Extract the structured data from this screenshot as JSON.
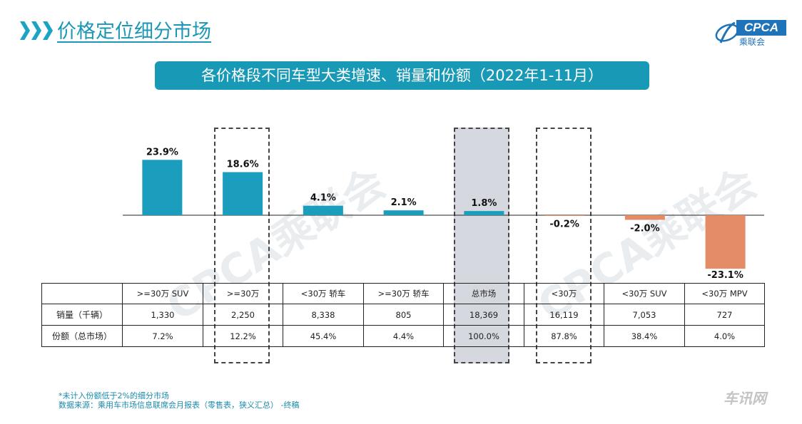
{
  "header": {
    "title": "价格定位细分市场",
    "logo_text": "CPCA",
    "logo_sub": "乘联会"
  },
  "banner": {
    "text": "各价格段不同车型大类增速、销量和份额（2022年1-11月）"
  },
  "watermark": {
    "text": "CPCA乘联会",
    "corner_text": "车讯网"
  },
  "colors": {
    "accent": "#1aa3c2",
    "positive": "#1b9dbd",
    "negative": "#e48b68",
    "highlight_fill": "#d5d8df"
  },
  "chart_data": {
    "type": "bar",
    "categories": [
      ">=30万 SUV",
      ">=30万",
      "<30万 轿车",
      ">=30万 轿车",
      "总市场",
      "<30万",
      "<30万 SUV",
      "<30万 MPV"
    ],
    "values": [
      23.9,
      18.6,
      4.1,
      2.1,
      1.8,
      -0.2,
      -2.0,
      -23.1
    ],
    "value_labels": [
      "23.9%",
      "18.6%",
      "4.1%",
      "2.1%",
      "1.8%",
      "-0.2%",
      "-2.0%",
      "-23.1%"
    ],
    "unit": "%",
    "highlighted_categories": [
      ">=30万",
      "总市场",
      "<30万"
    ],
    "table": {
      "rows": [
        {
          "label": "销量（千辆）",
          "values": [
            "1,330",
            "2,250",
            "8,338",
            "805",
            "18,369",
            "16,119",
            "7,053",
            "727"
          ]
        },
        {
          "label": "份额（总市场）",
          "values": [
            "7.2%",
            "12.2%",
            "45.4%",
            "4.4%",
            "100.0%",
            "87.8%",
            "38.4%",
            "4.0%"
          ]
        }
      ]
    }
  },
  "footnote": {
    "line1": "*未计入份额低于2%的细分市场",
    "line2": "数据来源：乘用车市场信息联席会月报表（零售表，狭义汇总） -终稿"
  }
}
